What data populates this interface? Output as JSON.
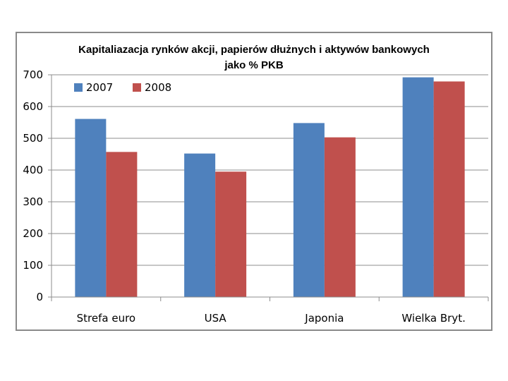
{
  "chart_data": {
    "type": "bar",
    "title": "Kapitaliazacja rynków akcji, papierów dłużnych i aktywów bankowych",
    "subtitle": "jako % PKB",
    "categories": [
      "Strefa euro",
      "USA",
      "Japonia",
      "Wielka Bryt."
    ],
    "series": [
      {
        "name": "2007",
        "color": "#4F81BD",
        "values": [
          561,
          452,
          548,
          692
        ]
      },
      {
        "name": "2008",
        "color": "#C0504D",
        "values": [
          457,
          395,
          503,
          679
        ]
      }
    ],
    "xlabel": "",
    "ylabel": "",
    "ylim": [
      0,
      700
    ],
    "yticks": [
      0,
      100,
      200,
      300,
      400,
      500,
      600,
      700
    ],
    "grid": true,
    "legend": "top-left"
  }
}
